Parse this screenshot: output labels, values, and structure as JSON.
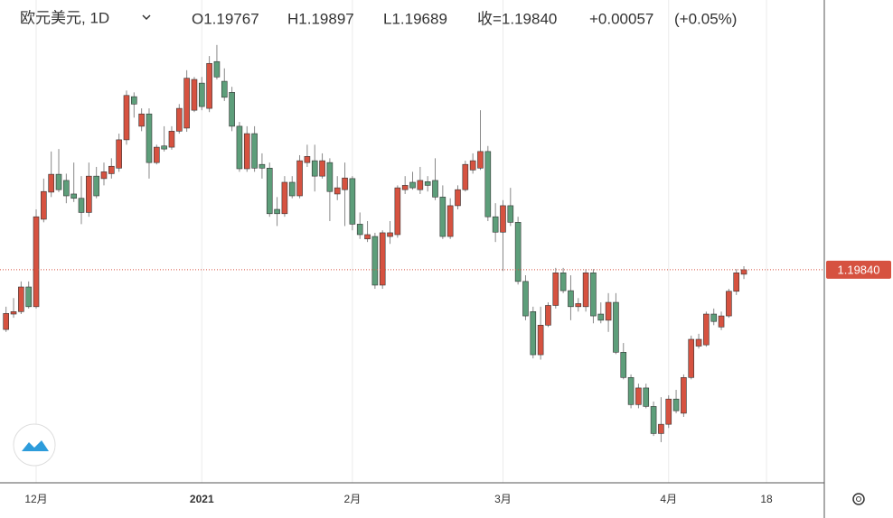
{
  "header": {
    "symbol": "欧元美元, 1D",
    "open": "O1.19767",
    "high": "H1.19897",
    "low": "L1.19689",
    "close": "收=1.19840",
    "change": "+0.00057",
    "change_pct": "(+0.05%)"
  },
  "chart_data": {
    "type": "candlestick",
    "categories": [
      null,
      null,
      null,
      null,
      "12月",
      null,
      null,
      null,
      null,
      null,
      null,
      null,
      null,
      null,
      null,
      null,
      null,
      null,
      null,
      null,
      null,
      null,
      null,
      null,
      null,
      null,
      "2021",
      null,
      null,
      null,
      null,
      null,
      null,
      null,
      null,
      null,
      null,
      null,
      null,
      null,
      null,
      null,
      null,
      null,
      null,
      null,
      "2月",
      null,
      null,
      null,
      null,
      null,
      null,
      null,
      null,
      null,
      null,
      null,
      null,
      null,
      null,
      null,
      null,
      null,
      null,
      null,
      "3月",
      null,
      null,
      null,
      null,
      null,
      null,
      null,
      null,
      null,
      null,
      null,
      null,
      null,
      null,
      null,
      null,
      null,
      null,
      null,
      null,
      null,
      "4月",
      null,
      null,
      null,
      null,
      null,
      null,
      null,
      null,
      null,
      null,
      null,
      null,
      "18"
    ],
    "open": [
      1.1887,
      1.1912,
      1.1916,
      1.1956,
      1.1924,
      1.2066,
      1.211,
      1.2139,
      1.2129,
      1.2107,
      1.21,
      1.2077,
      1.2136,
      1.2132,
      1.214,
      1.2149,
      1.2195,
      1.2265,
      1.2217,
      1.2237,
      1.2158,
      1.2185,
      1.2183,
      1.2209,
      1.2214,
      1.2243,
      1.2287,
      1.2246,
      1.2322,
      1.229,
      1.2272,
      1.2217,
      1.2148,
      1.2205,
      1.2155,
      1.2149,
      1.2082,
      1.2075,
      1.2126,
      1.2104,
      1.2158,
      1.2161,
      1.2136,
      1.2158,
      1.2107,
      1.2114,
      1.2132,
      1.2058,
      1.2034,
      1.2038,
      1.1959,
      1.2038,
      1.2041,
      1.2114,
      1.2126,
      1.2114,
      1.2127,
      1.2129,
      1.2102,
      1.2038,
      1.2088,
      1.2114,
      1.2146,
      1.2149,
      1.2176,
      1.207,
      1.2045,
      1.2088,
      1.2061,
      1.1965,
      1.1916,
      1.1846,
      1.1894,
      1.1926,
      1.1979,
      1.195,
      1.1924,
      1.1924,
      1.1979,
      1.1912,
      1.1902,
      1.1931,
      1.185,
      1.1809,
      1.1765,
      1.1792,
      1.1762,
      1.1718,
      1.1733,
      1.1774,
      1.1751,
      1.1809,
      1.186,
      1.1862,
      1.1912,
      1.1891,
      1.1909,
      1.1949,
      1.19767,
      null,
      null,
      null
    ],
    "high": [
      1.1924,
      1.1938,
      1.1965,
      1.1965,
      1.2082,
      1.2132,
      1.2176,
      1.218,
      1.214,
      1.2158,
      1.2136,
      1.2158,
      1.2151,
      1.2158,
      1.2165,
      1.2205,
      1.2275,
      1.2272,
      1.2246,
      1.2246,
      1.2187,
      1.2217,
      1.2217,
      1.2253,
      1.2308,
      1.2297,
      1.2297,
      1.2331,
      1.2349,
      1.2311,
      1.2281,
      1.2224,
      1.2217,
      1.2217,
      1.2173,
      1.2158,
      1.2102,
      1.2136,
      1.2136,
      1.217,
      1.2187,
      1.2187,
      1.2173,
      1.2165,
      1.2136,
      1.2158,
      1.2136,
      1.2077,
      1.2063,
      1.2044,
      1.2048,
      1.2063,
      1.2121,
      1.2136,
      1.2143,
      1.2151,
      1.2136,
      1.2165,
      1.2121,
      1.21,
      1.2121,
      1.2161,
      1.2173,
      1.2243,
      1.2185,
      1.2092,
      1.2097,
      1.2117,
      1.207,
      1.1975,
      1.1924,
      1.1924,
      1.1931,
      1.1987,
      1.1987,
      1.1975,
      1.1938,
      1.1985,
      1.1985,
      1.1931,
      1.1946,
      1.1946,
      1.1865,
      1.1814,
      1.1799,
      1.1799,
      1.177,
      1.1777,
      1.178,
      1.1789,
      1.1814,
      1.1877,
      1.188,
      1.1916,
      1.1921,
      1.1916,
      1.1953,
      1.1985,
      1.19897,
      null,
      null,
      null
    ],
    "low": [
      1.1883,
      1.1906,
      1.1912,
      1.1921,
      1.1921,
      1.2061,
      1.2102,
      1.211,
      1.2092,
      1.2094,
      1.2058,
      1.207,
      1.21,
      1.2121,
      1.2132,
      1.2143,
      1.2187,
      1.2231,
      1.2209,
      1.2132,
      1.2155,
      1.2176,
      1.2179,
      1.2205,
      1.2208,
      1.224,
      1.2243,
      1.224,
      1.2293,
      1.2258,
      1.2209,
      1.2143,
      1.2143,
      1.2143,
      1.2132,
      1.207,
      1.2055,
      1.207,
      1.21,
      1.21,
      1.2151,
      1.2111,
      1.2132,
      1.2063,
      1.2097,
      1.2055,
      1.2048,
      1.2034,
      1.2029,
      1.1953,
      1.1953,
      1.2026,
      1.2036,
      1.2107,
      1.2114,
      1.2107,
      1.2111,
      1.2097,
      1.2034,
      1.2034,
      1.2082,
      1.2111,
      1.214,
      1.2146,
      1.2063,
      1.2029,
      1.1982,
      1.2055,
      1.196,
      1.1902,
      1.184,
      1.1838,
      1.1891,
      1.1921,
      1.1946,
      1.1902,
      1.1916,
      1.1916,
      1.1897,
      1.1897,
      1.1883,
      1.1847,
      1.1806,
      1.1759,
      1.1759,
      1.1759,
      1.1714,
      1.1704,
      1.1727,
      1.1751,
      1.1745,
      1.1806,
      1.1856,
      1.1859,
      1.1894,
      1.1886,
      1.1906,
      1.1943,
      1.19689,
      null,
      null,
      null
    ],
    "close": [
      1.1913,
      1.1916,
      1.1956,
      1.1924,
      1.207,
      1.2111,
      1.2139,
      1.2114,
      1.2104,
      1.21,
      1.2077,
      1.2136,
      1.2104,
      1.2143,
      1.2152,
      1.2195,
      1.2267,
      1.2253,
      1.2237,
      1.2158,
      1.2183,
      1.218,
      1.2209,
      1.2246,
      1.2295,
      1.2293,
      1.2249,
      1.2319,
      1.2297,
      1.2264,
      1.2217,
      1.2148,
      1.2205,
      1.2149,
      1.2149,
      1.2075,
      1.2075,
      1.2126,
      1.2104,
      1.2161,
      1.2168,
      1.2136,
      1.2161,
      1.2111,
      1.2117,
      1.2133,
      1.2058,
      1.2041,
      1.2041,
      1.1959,
      1.2044,
      1.2044,
      1.2117,
      1.2121,
      1.2117,
      1.2129,
      1.2121,
      1.2102,
      1.2038,
      1.2088,
      1.2114,
      1.2155,
      1.2161,
      1.2176,
      1.207,
      1.2045,
      1.2088,
      1.2061,
      1.1965,
      1.1909,
      1.1846,
      1.1894,
      1.1926,
      1.1979,
      1.195,
      1.1924,
      1.1929,
      1.1979,
      1.1909,
      1.1902,
      1.1931,
      1.185,
      1.1809,
      1.1765,
      1.1792,
      1.1762,
      1.1718,
      1.1733,
      1.1774,
      1.1755,
      1.1809,
      1.1871,
      1.1871,
      1.1912,
      1.19,
      1.1909,
      1.1949,
      1.1979,
      1.1984,
      null,
      null,
      null
    ],
    "up_color": "#d65240",
    "down_color": "#5d9e7a",
    "ylim": [
      1.1638,
      1.2422
    ],
    "last_price": 1.1984,
    "last_price_label": "1.19840",
    "grid": true
  }
}
